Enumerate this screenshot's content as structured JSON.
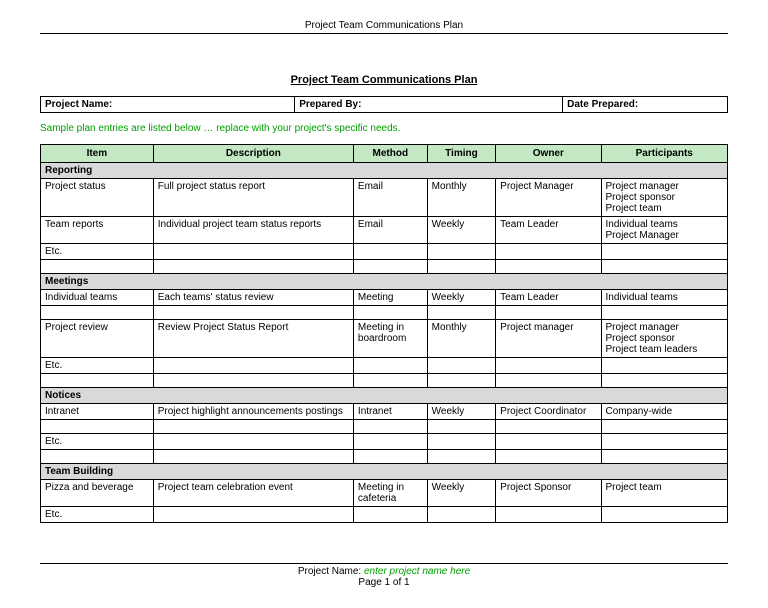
{
  "header": {
    "running_title": "Project Team Communications Plan"
  },
  "document": {
    "title": "Project Team Communications Plan",
    "meta_labels": {
      "project_name": "Project Name:",
      "prepared_by": "Prepared By:",
      "date_prepared": "Date Prepared:"
    },
    "sample_note": "Sample plan entries are listed below … replace with your project's specific needs."
  },
  "table": {
    "columns": {
      "item": "Item",
      "description": "Description",
      "method": "Method",
      "timing": "Timing",
      "owner": "Owner",
      "participants": "Participants"
    },
    "widths": {
      "item": 107,
      "description": 190,
      "method": 70,
      "timing": 65,
      "owner": 100,
      "participants": 120
    },
    "header_bg": "#c3e8c3",
    "section_bg": "#d9d9d9",
    "border_color": "#000000",
    "sections": {
      "reporting": {
        "label": "Reporting",
        "rows": {
          "r0": {
            "item": "Project status",
            "description": "Full project status report",
            "method": "Email",
            "timing": "Monthly",
            "owner": "Project Manager",
            "participants": "Project manager\nProject sponsor\nProject team"
          },
          "r1": {
            "item": "Team reports",
            "description": "Individual project team status reports",
            "method": "Email",
            "timing": "Weekly",
            "owner": "Team Leader",
            "participants": "Individual teams\nProject Manager"
          },
          "r2": {
            "item": "Etc.",
            "description": "",
            "method": "",
            "timing": "",
            "owner": "",
            "participants": ""
          },
          "r3": {
            "item": "",
            "description": "",
            "method": "",
            "timing": "",
            "owner": "",
            "participants": ""
          }
        }
      },
      "meetings": {
        "label": "Meetings",
        "rows": {
          "r0": {
            "item": "Individual teams",
            "description": "Each teams' status review",
            "method": "Meeting",
            "timing": "Weekly",
            "owner": "Team Leader",
            "participants": "Individual teams"
          },
          "gap0": {
            "item": "",
            "description": "",
            "method": "",
            "timing": "",
            "owner": "",
            "participants": ""
          },
          "r1": {
            "item": "Project review",
            "description": "Review Project Status Report",
            "method": "Meeting in boardroom",
            "timing": "Monthly",
            "owner": "Project manager",
            "participants": "Project manager\nProject sponsor\nProject team leaders"
          },
          "r2": {
            "item": "Etc.",
            "description": "",
            "method": "",
            "timing": "",
            "owner": "",
            "participants": ""
          },
          "r3": {
            "item": "",
            "description": "",
            "method": "",
            "timing": "",
            "owner": "",
            "participants": ""
          }
        }
      },
      "notices": {
        "label": "Notices",
        "rows": {
          "r0": {
            "item": "Intranet",
            "description": "Project highlight announcements postings",
            "method": "Intranet",
            "timing": "Weekly",
            "owner": "Project Coordinator",
            "participants": "Company-wide"
          },
          "gap0": {
            "item": "",
            "description": "",
            "method": "",
            "timing": "",
            "owner": "",
            "participants": ""
          },
          "r1": {
            "item": "Etc.",
            "description": "",
            "method": "",
            "timing": "",
            "owner": "",
            "participants": ""
          },
          "r2": {
            "item": "",
            "description": "",
            "method": "",
            "timing": "",
            "owner": "",
            "participants": ""
          }
        }
      },
      "teambuilding": {
        "label": "Team Building",
        "rows": {
          "r0": {
            "item": "Pizza and beverage",
            "description": "Project team celebration event",
            "method": "Meeting in cafeteria",
            "timing": "Weekly",
            "owner": "Project Sponsor",
            "participants": "Project team"
          },
          "r1": {
            "item": "Etc.",
            "description": "",
            "method": "",
            "timing": "",
            "owner": "",
            "participants": ""
          }
        }
      }
    }
  },
  "footer": {
    "label": "Project Name:",
    "placeholder": "enter project name here",
    "page": "Page 1 of 1"
  },
  "colors": {
    "note_green": "#00a000",
    "background": "#ffffff"
  }
}
